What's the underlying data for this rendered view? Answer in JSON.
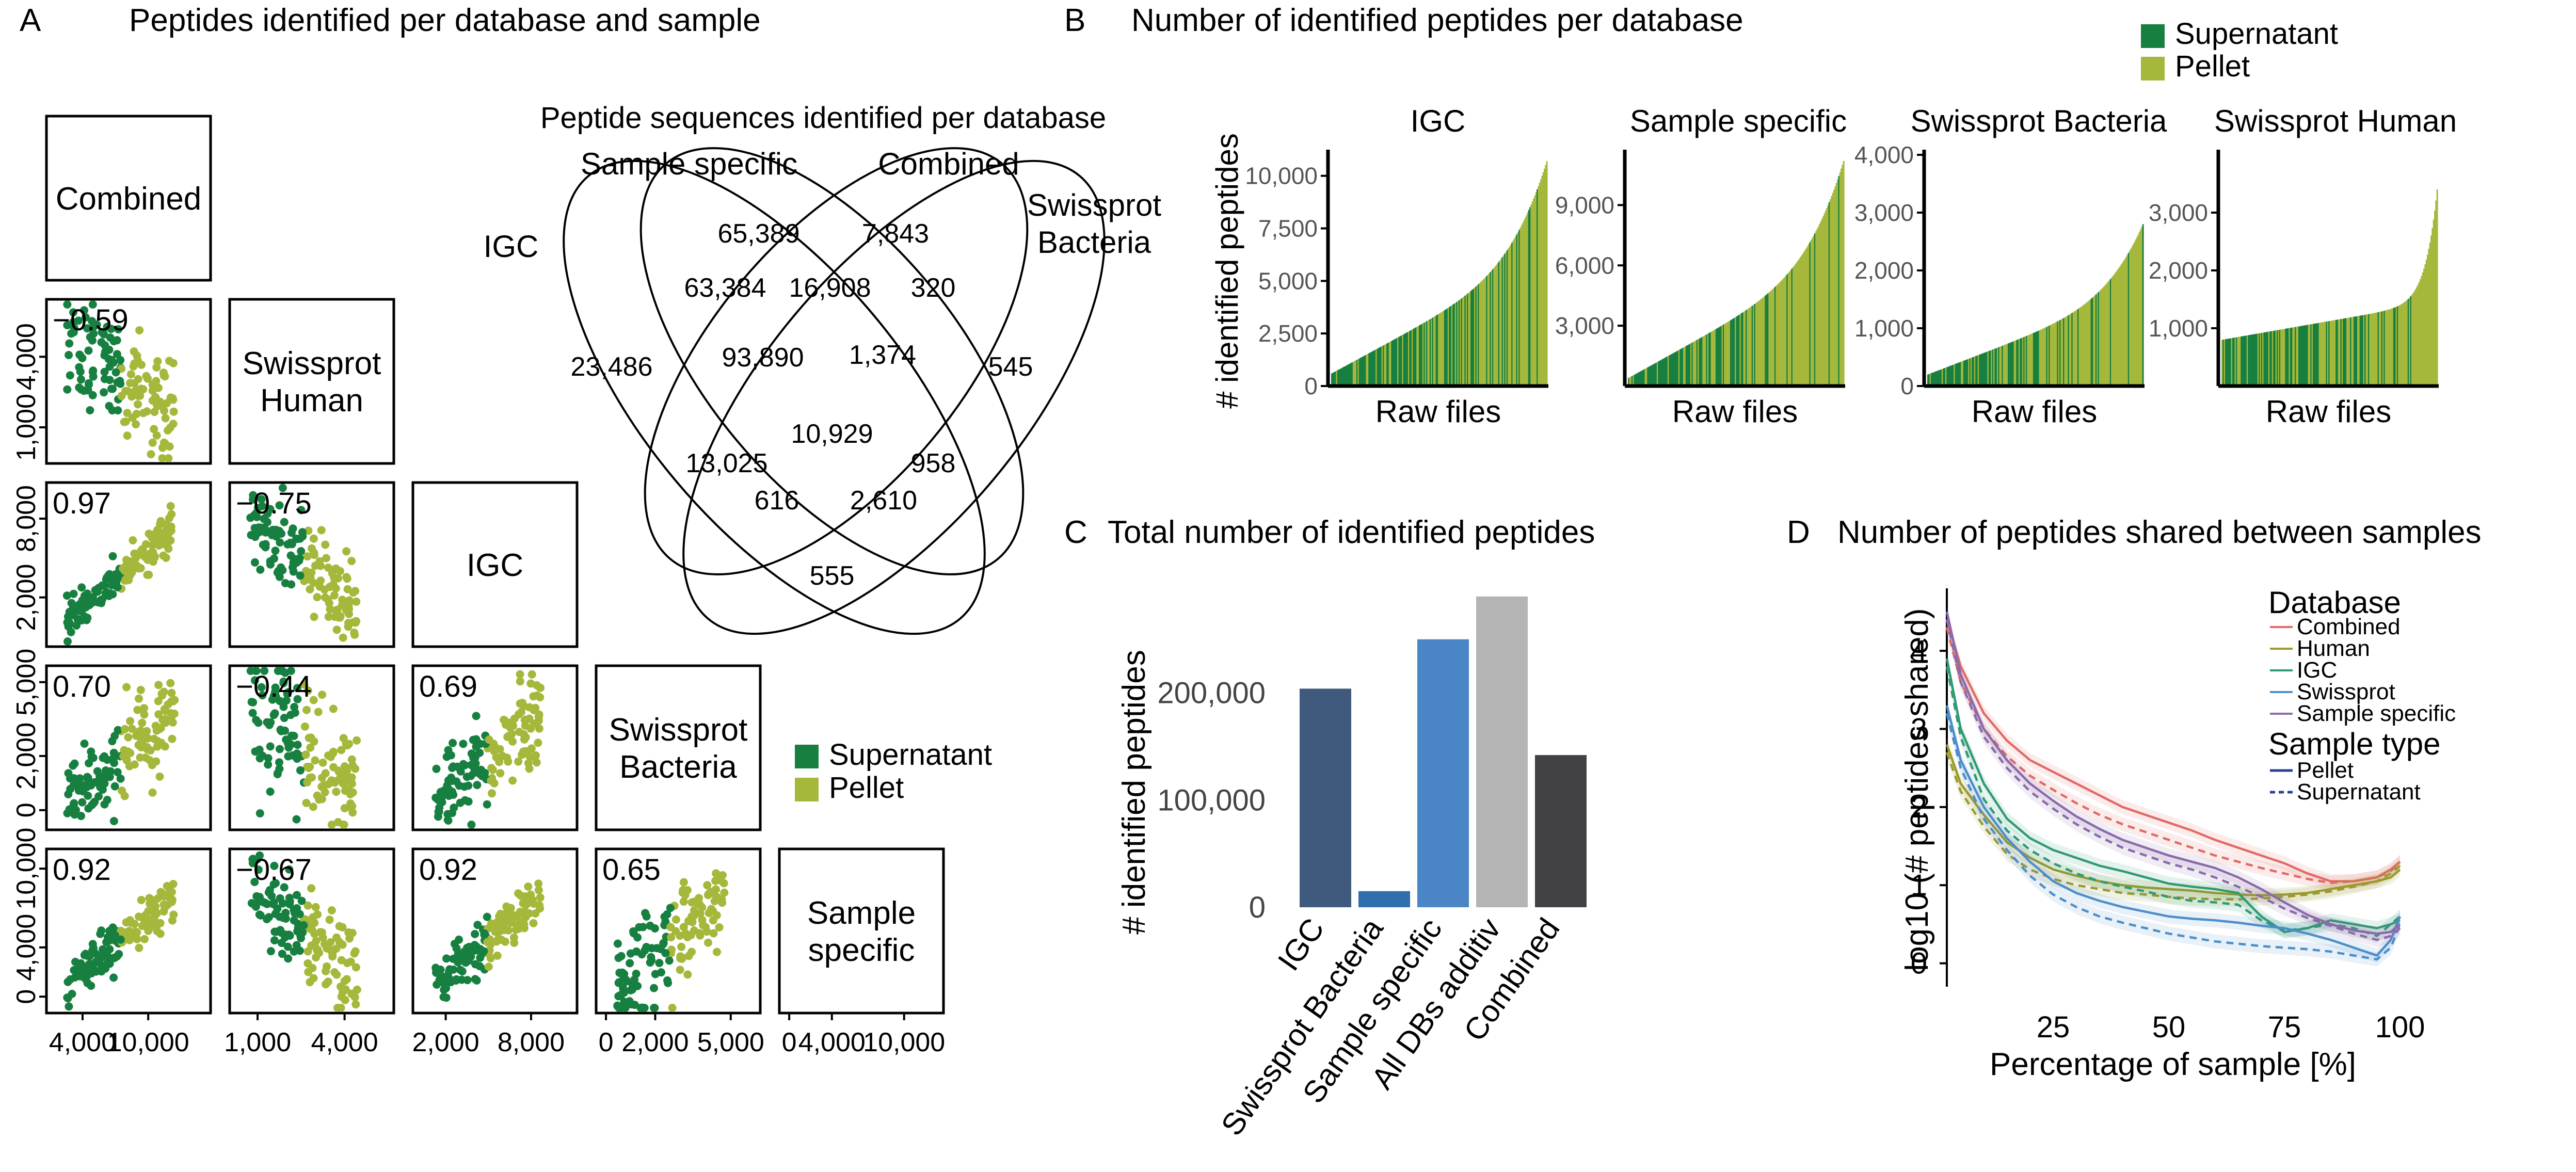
{
  "colors": {
    "supernatant": "#178041",
    "pellet": "#a6b83b",
    "bar_igc": "#3f5a7c",
    "bar_swissprot": "#2f6fae",
    "bar_sample": "#4a86c5",
    "bar_all": "#b4b4b4",
    "bar_combined": "#414146",
    "line_combined": "#e06a66",
    "line_human": "#9c9a2c",
    "line_igc": "#2f9a74",
    "line_swissprot": "#4c8ec9",
    "line_sample": "#8a6aaa"
  },
  "panel_letters": {
    "a": "A",
    "b": "B",
    "c": "C",
    "d": "D"
  },
  "titles": {
    "a": "Peptides identified per database and sample",
    "b": "Number of identified peptides per database",
    "c": "Total number of identified peptides",
    "d": "Number of peptides shared between samples"
  },
  "legend_sample": {
    "supernatant": "Supernatant",
    "pellet": "Pellet"
  },
  "chart_data": [
    {
      "panel": "A",
      "type": "scatter",
      "title": "Peptides identified per database and sample",
      "diagonal": [
        "Combined",
        "Swissprot Human",
        "IGC",
        "Swissprot Bacteria",
        "Sample specific"
      ],
      "correlations": [
        {
          "row": 1,
          "col": 0,
          "r": "−0.59"
        },
        {
          "row": 2,
          "col": 0,
          "r": "0.97"
        },
        {
          "row": 2,
          "col": 1,
          "r": "−0.75"
        },
        {
          "row": 3,
          "col": 0,
          "r": "0.70"
        },
        {
          "row": 3,
          "col": 1,
          "r": "−0.44"
        },
        {
          "row": 3,
          "col": 2,
          "r": "0.69"
        },
        {
          "row": 4,
          "col": 0,
          "r": "0.92"
        },
        {
          "row": 4,
          "col": 1,
          "r": "−0.67"
        },
        {
          "row": 4,
          "col": 2,
          "r": "0.92"
        },
        {
          "row": 4,
          "col": 3,
          "r": "0.65"
        }
      ],
      "x_ticks": [
        [
          "4,000",
          "10,000"
        ],
        [
          "1,000",
          "4,000"
        ],
        [
          "2,000",
          "8,000"
        ],
        [
          "0",
          "2,000",
          "5,000"
        ],
        [
          "0",
          "4,000",
          "10,000"
        ]
      ],
      "y_ticks": {
        "row1": [
          "1,000",
          "4,000"
        ],
        "row2": [
          "2,000",
          "8,000"
        ],
        "row3": [
          "0",
          "2,000",
          "5,000"
        ],
        "row4": [
          "0",
          "4,000",
          "10,000"
        ]
      },
      "series": [
        "Supernatant",
        "Pellet"
      ]
    },
    {
      "panel": "A-venn",
      "type": "venn",
      "title": "Peptide sequences identified per database",
      "sets": [
        "IGC",
        "Sample specific",
        "Combined",
        "Swissprot Bacteria"
      ],
      "regions": [
        {
          "sets": [
            "Sample specific"
          ],
          "value": "65,389"
        },
        {
          "sets": [
            "Combined"
          ],
          "value": "7,843"
        },
        {
          "sets": [
            "IGC",
            "Sample specific"
          ],
          "value": "63,384"
        },
        {
          "sets": [
            "Sample specific",
            "Combined"
          ],
          "value": "16,908"
        },
        {
          "sets": [
            "Combined",
            "Swissprot Bacteria"
          ],
          "value": "320"
        },
        {
          "sets": [
            "IGC"
          ],
          "value": "23,486"
        },
        {
          "sets": [
            "IGC",
            "Sample specific",
            "Combined"
          ],
          "value": "93,890"
        },
        {
          "sets": [
            "Sample specific",
            "Combined",
            "Swissprot Bacteria"
          ],
          "value": "1,374"
        },
        {
          "sets": [
            "Swissprot Bacteria"
          ],
          "value": "545"
        },
        {
          "sets": [
            "IGC",
            "Sample specific",
            "Combined",
            "Swissprot Bacteria"
          ],
          "value": "10,929"
        },
        {
          "sets": [
            "IGC",
            "Combined"
          ],
          "value": "13,025"
        },
        {
          "sets": [
            "Sample specific",
            "Swissprot Bacteria"
          ],
          "value": "958"
        },
        {
          "sets": [
            "IGC",
            "Combined",
            "Swissprot Bacteria"
          ],
          "value": "616"
        },
        {
          "sets": [
            "IGC",
            "Sample specific",
            "Swissprot Bacteria"
          ],
          "value": "2,610"
        },
        {
          "sets": [
            "IGC",
            "Swissprot Bacteria"
          ],
          "value": "555"
        }
      ]
    },
    {
      "panel": "B",
      "type": "bar",
      "title": "Number of identified peptides per database",
      "ylabel": "# identified peptides",
      "xlabel": "Raw files",
      "legend": [
        "Supernatant",
        "Pellet"
      ],
      "subplots": [
        {
          "name": "IGC",
          "ylim": [
            0,
            11000
          ],
          "yticks": [
            0,
            2500,
            5000,
            7500,
            10000
          ],
          "ytick_labels": [
            "0",
            "2,500",
            "5,000",
            "7,500",
            "10,000"
          ],
          "range": [
            600,
            10700
          ]
        },
        {
          "name": "Sample specific",
          "ylim": [
            0,
            11500
          ],
          "yticks": [
            3000,
            6000,
            9000
          ],
          "ytick_labels": [
            "3,000",
            "6,000",
            "9,000"
          ],
          "range": [
            400,
            11200
          ]
        },
        {
          "name": "Swissprot Bacteria",
          "ylim": [
            0,
            4000
          ],
          "yticks": [
            0,
            1000,
            2000,
            3000,
            4000
          ],
          "ytick_labels": [
            "0",
            "1,000",
            "2,000",
            "3,000",
            "4,000"
          ],
          "range": [
            200,
            2800
          ]
        },
        {
          "name": "Swissprot Human",
          "ylim": [
            0,
            4000
          ],
          "yticks": [
            1000,
            2000,
            3000
          ],
          "ytick_labels": [
            "1,000",
            "2,000",
            "3,000"
          ],
          "range": [
            800,
            3400
          ]
        }
      ]
    },
    {
      "panel": "C",
      "type": "bar",
      "title": "Total number of identified peptides",
      "ylabel": "# identified peptides",
      "categories": [
        "IGC",
        "Swissprot Bacteria",
        "Sample specific",
        "All DBs additiv",
        "Combined"
      ],
      "values": [
        204000,
        15000,
        250000,
        290000,
        142000
      ],
      "ylim": [
        0,
        300000
      ],
      "yticks": [
        0,
        100000,
        200000
      ],
      "ytick_labels": [
        "0",
        "100,000",
        "200,000"
      ]
    },
    {
      "panel": "D",
      "type": "line",
      "title": "Number of peptides shared between samples",
      "xlabel": "Percentage of sample [%]",
      "ylabel": "log10 (# peptides shared)",
      "xlim": [
        2,
        100
      ],
      "ylim": [
        -0.3,
        4.8
      ],
      "xticks": [
        25,
        50,
        75,
        100
      ],
      "yticks": [
        0,
        1,
        2,
        3,
        4
      ],
      "legend_database_title": "Database",
      "legend_sample_title": "Sample type",
      "x": [
        2,
        5,
        10,
        15,
        20,
        25,
        30,
        35,
        40,
        45,
        50,
        55,
        60,
        65,
        70,
        75,
        80,
        85,
        90,
        95,
        98,
        100
      ],
      "series": [
        {
          "name": "Combined",
          "sample": "Pellet",
          "values": [
            4.4,
            3.8,
            3.2,
            2.85,
            2.6,
            2.45,
            2.3,
            2.15,
            2.0,
            1.9,
            1.8,
            1.7,
            1.58,
            1.48,
            1.38,
            1.28,
            1.15,
            1.05,
            1.05,
            1.1,
            1.2,
            1.3
          ]
        },
        {
          "name": "Combined",
          "sample": "Supernatant",
          "values": [
            4.3,
            3.6,
            3.0,
            2.65,
            2.4,
            2.22,
            2.05,
            1.9,
            1.78,
            1.68,
            1.58,
            1.48,
            1.38,
            1.3,
            1.22,
            1.15,
            1.08,
            1.03,
            1.05,
            1.1,
            1.18,
            1.3
          ]
        },
        {
          "name": "Human",
          "sample": "Pellet",
          "values": [
            2.8,
            2.3,
            1.9,
            1.55,
            1.35,
            1.2,
            1.12,
            1.05,
            1.0,
            0.97,
            0.95,
            0.93,
            0.9,
            0.88,
            0.87,
            0.88,
            0.9,
            0.95,
            1.0,
            1.05,
            1.1,
            1.2
          ]
        },
        {
          "name": "Human",
          "sample": "Supernatant",
          "values": [
            2.7,
            2.2,
            1.75,
            1.4,
            1.2,
            1.08,
            1.0,
            0.95,
            0.9,
            0.88,
            0.85,
            0.83,
            0.82,
            0.82,
            0.83,
            0.85,
            0.88,
            0.92,
            0.98,
            1.05,
            1.15,
            1.25
          ]
        },
        {
          "name": "IGC",
          "sample": "Pellet",
          "values": [
            3.9,
            3.0,
            2.3,
            1.85,
            1.6,
            1.45,
            1.35,
            1.25,
            1.18,
            1.1,
            1.02,
            0.98,
            0.95,
            0.9,
            0.6,
            0.4,
            0.45,
            0.55,
            0.5,
            0.45,
            0.5,
            0.55
          ]
        },
        {
          "name": "IGC",
          "sample": "Supernatant",
          "values": [
            3.8,
            2.9,
            2.1,
            1.7,
            1.45,
            1.28,
            1.15,
            1.05,
            0.98,
            0.92,
            0.85,
            0.8,
            0.78,
            0.75,
            0.55,
            0.42,
            0.45,
            0.5,
            0.45,
            0.35,
            0.5,
            0.6
          ]
        },
        {
          "name": "Swissprot",
          "sample": "Pellet",
          "values": [
            3.3,
            2.6,
            2.0,
            1.6,
            1.3,
            1.05,
            0.9,
            0.8,
            0.72,
            0.66,
            0.6,
            0.57,
            0.55,
            0.52,
            0.48,
            0.45,
            0.38,
            0.3,
            0.2,
            0.1,
            0.3,
            0.6
          ]
        },
        {
          "name": "Swissprot",
          "sample": "Supernatant",
          "values": [
            3.2,
            2.5,
            1.85,
            1.45,
            1.12,
            0.88,
            0.72,
            0.6,
            0.52,
            0.45,
            0.38,
            0.33,
            0.28,
            0.25,
            0.22,
            0.2,
            0.18,
            0.15,
            0.1,
            0.05,
            0.2,
            0.5
          ]
        },
        {
          "name": "Sample specific",
          "sample": "Pellet",
          "values": [
            4.5,
            3.7,
            3.0,
            2.6,
            2.3,
            2.08,
            1.88,
            1.72,
            1.58,
            1.48,
            1.38,
            1.3,
            1.22,
            1.1,
            0.95,
            0.78,
            0.62,
            0.5,
            0.42,
            0.38,
            0.4,
            0.5
          ]
        },
        {
          "name": "Sample specific",
          "sample": "Supernatant",
          "values": [
            4.4,
            3.6,
            2.9,
            2.5,
            2.2,
            1.98,
            1.78,
            1.62,
            1.48,
            1.38,
            1.28,
            1.2,
            1.1,
            0.98,
            0.85,
            0.7,
            0.58,
            0.48,
            0.38,
            0.3,
            0.35,
            0.45
          ]
        }
      ],
      "legend_database": [
        "Combined",
        "Human",
        "IGC",
        "Swissprot",
        "Sample specific"
      ],
      "legend_sample": [
        "Pellet",
        "Supernatant"
      ]
    }
  ]
}
